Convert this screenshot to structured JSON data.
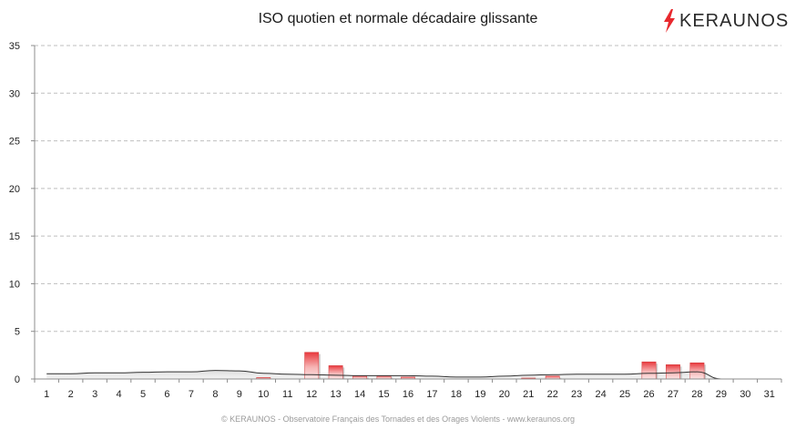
{
  "chart_data": {
    "type": "bar",
    "title": "ISO quotien et normale décadaire glissante",
    "xlabel": "",
    "ylabel": "",
    "ylim": [
      0,
      35
    ],
    "yticks": [
      0,
      5,
      10,
      15,
      20,
      25,
      30,
      35
    ],
    "grid": true,
    "categories": [
      "1",
      "2",
      "3",
      "4",
      "5",
      "6",
      "7",
      "8",
      "9",
      "10",
      "11",
      "12",
      "13",
      "14",
      "15",
      "16",
      "17",
      "18",
      "19",
      "20",
      "21",
      "22",
      "23",
      "24",
      "25",
      "26",
      "27",
      "28",
      "29",
      "30",
      "31"
    ],
    "series": [
      {
        "kind": "bar",
        "values": [
          0,
          0,
          0,
          0,
          0,
          0,
          0,
          0,
          0,
          0.15,
          0,
          2.8,
          1.4,
          0.35,
          0.35,
          0.2,
          0,
          0,
          0,
          0,
          0.1,
          0.3,
          0,
          0,
          0,
          1.8,
          1.5,
          1.7,
          0,
          0,
          0
        ],
        "color": "#e8383d"
      },
      {
        "kind": "area",
        "values": [
          0.55,
          0.55,
          0.65,
          0.65,
          0.7,
          0.75,
          0.75,
          0.9,
          0.85,
          0.6,
          0.5,
          0.45,
          0.4,
          0.35,
          0.35,
          0.35,
          0.3,
          0.2,
          0.2,
          0.3,
          0.4,
          0.45,
          0.5,
          0.5,
          0.5,
          0.6,
          0.65,
          0.75,
          0,
          0,
          0
        ],
        "color": "#333333"
      }
    ]
  },
  "logo": {
    "text": "KERAUNOS",
    "accent": "#e8282d"
  },
  "footer": "© KERAUNOS - Observatoire Français des Tornades et des Orages Violents - www.keraunos.org"
}
